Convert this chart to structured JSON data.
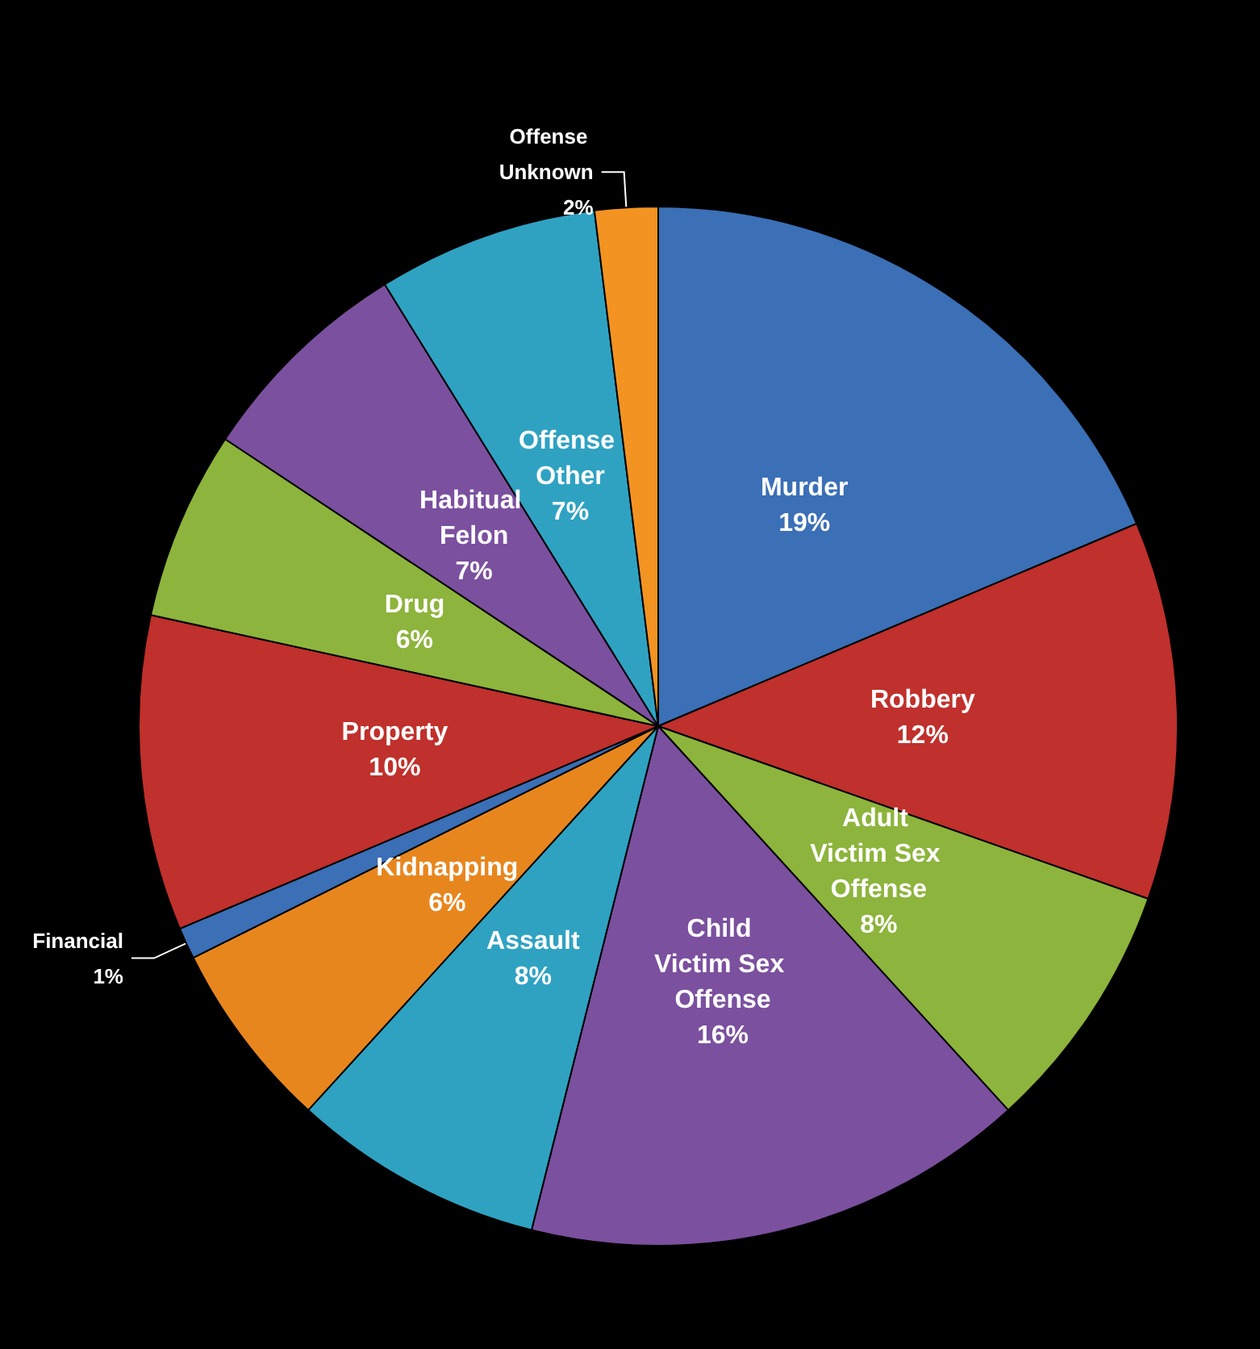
{
  "chart_data": {
    "type": "pie",
    "categories": [
      "Murder",
      "Robbery",
      "Adult Victim Sex Offense",
      "Child Victim Sex Offense",
      "Assault",
      "Kidnapping",
      "Financial",
      "Property",
      "Drug",
      "Habitual Felon",
      "Offense Other",
      "Offense Unknown"
    ],
    "values": [
      19,
      12,
      8,
      16,
      8,
      6,
      1,
      10,
      6,
      7,
      7,
      2
    ],
    "value_labels": [
      "19%",
      "12%",
      "8%",
      "16%",
      "8%",
      "6%",
      "1%",
      "10%",
      "6%",
      "7%",
      "7%",
      "2%"
    ],
    "colors": [
      "#3b6fb6",
      "#c0302c",
      "#8db43c",
      "#7b509f",
      "#2fa2c2",
      "#e8861e",
      "#3b6fb6",
      "#c0302c",
      "#8db43c",
      "#7b509f",
      "#2fa2c2",
      "#f39322"
    ]
  }
}
